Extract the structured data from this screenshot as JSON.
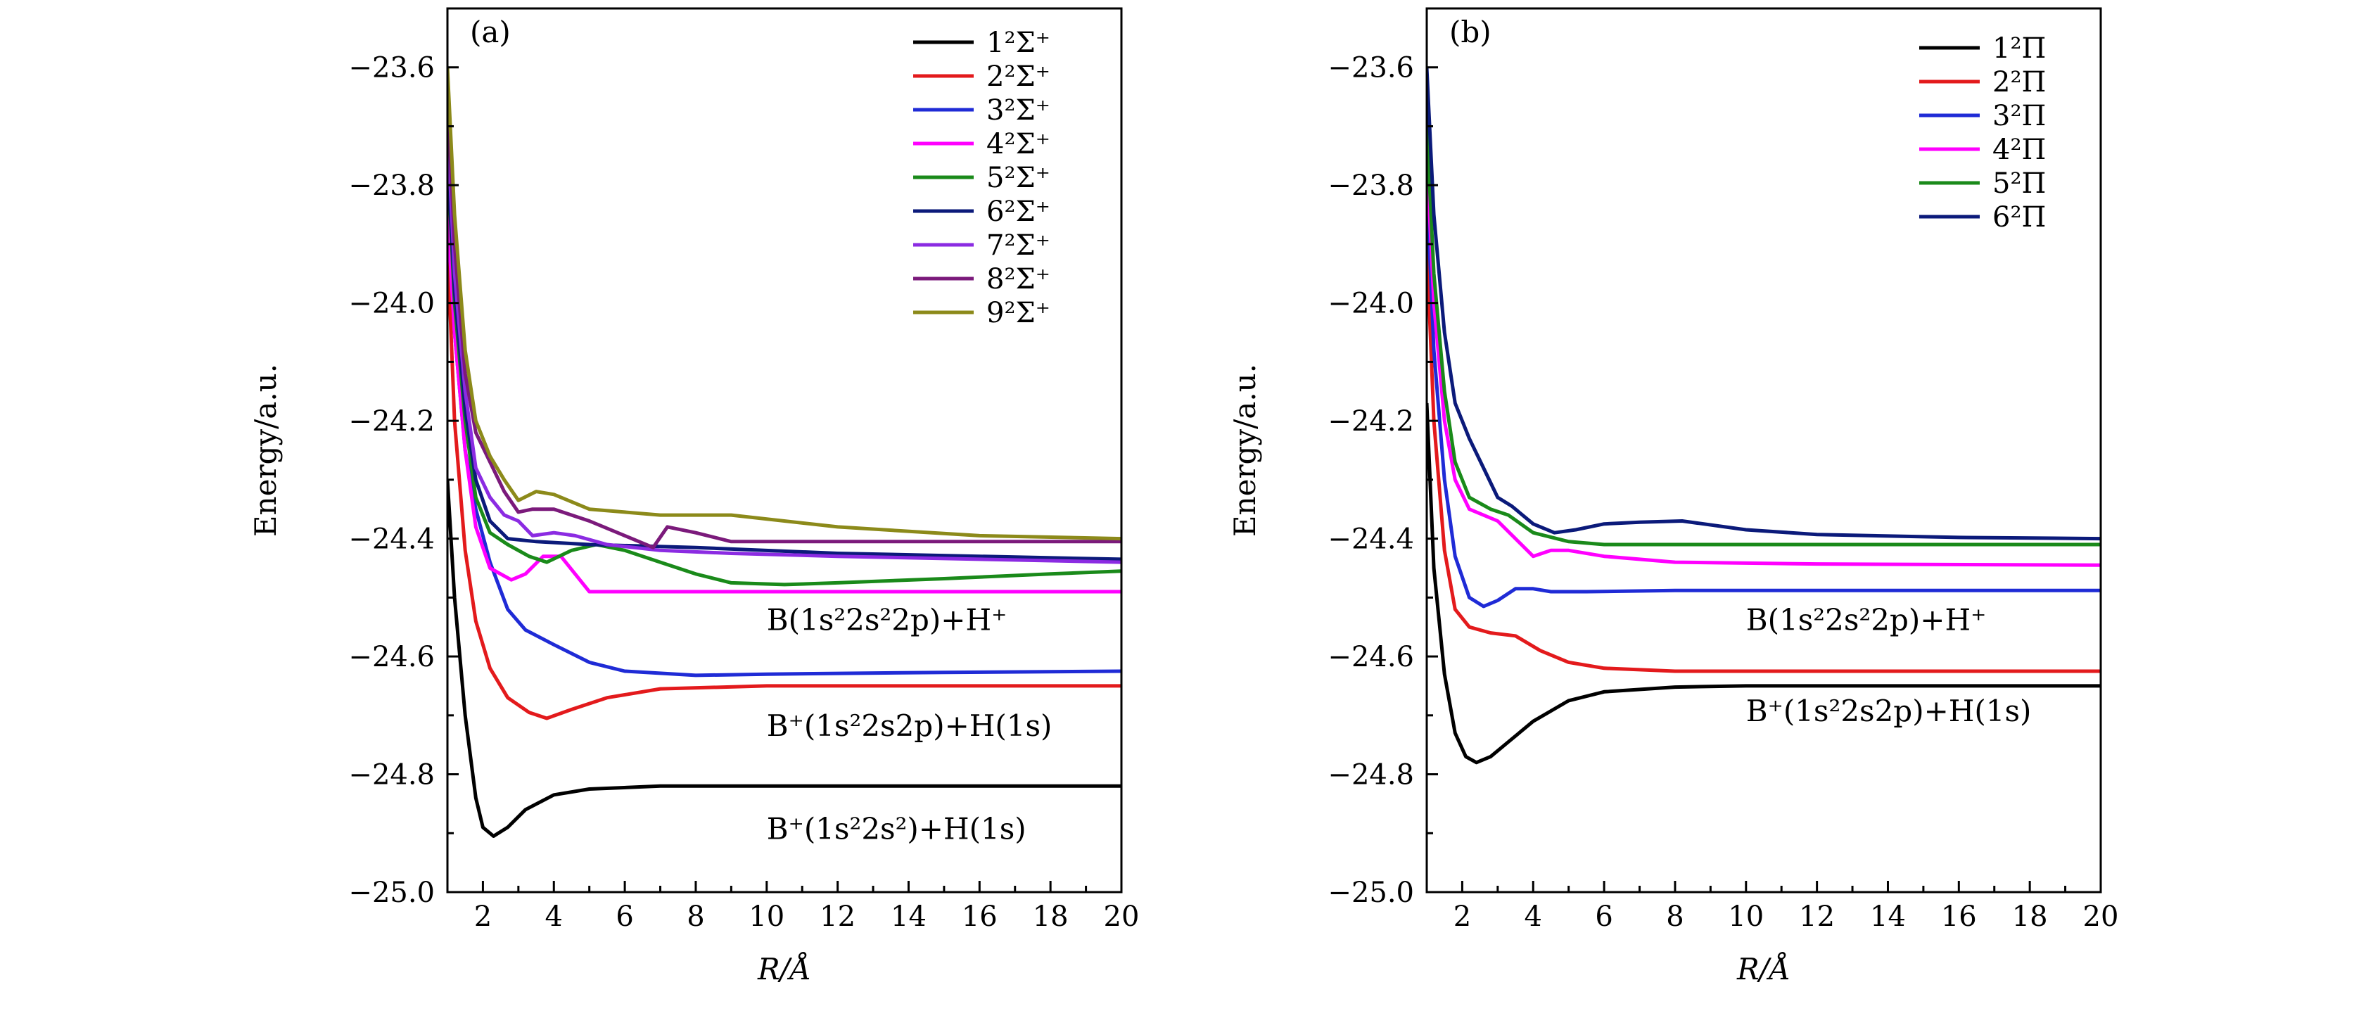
{
  "chart_data": [
    {
      "type": "line",
      "panel_label": "(a)",
      "xlabel": "R/Å",
      "ylabel": "Energy/a.u.",
      "xlim": [
        1,
        20
      ],
      "ylim": [
        -25.0,
        -23.5
      ],
      "xticks": [
        2,
        4,
        6,
        8,
        10,
        12,
        14,
        16,
        18,
        20
      ],
      "yticks": [
        -25.0,
        -24.8,
        -24.6,
        -24.4,
        -24.2,
        -24.0,
        -23.8,
        -23.6
      ],
      "xtick_labels": [
        "2",
        "4",
        "6",
        "8",
        "10",
        "12",
        "14",
        "16",
        "18",
        "20"
      ],
      "ytick_labels": [
        "−25.0",
        "−24.8",
        "−24.6",
        "−24.4",
        "−24.2",
        "−24.0",
        "−23.8",
        "−23.6"
      ],
      "legend_position": "top-right",
      "series": [
        {
          "name": "1²Σ⁺",
          "color": "#000000",
          "points": [
            [
              1.0,
              -24.3
            ],
            [
              1.2,
              -24.5
            ],
            [
              1.5,
              -24.7
            ],
            [
              1.8,
              -24.84
            ],
            [
              2.0,
              -24.89
            ],
            [
              2.3,
              -24.905
            ],
            [
              2.7,
              -24.89
            ],
            [
              3.2,
              -24.86
            ],
            [
              4.0,
              -24.835
            ],
            [
              5.0,
              -24.825
            ],
            [
              7.0,
              -24.82
            ],
            [
              10,
              -24.82
            ],
            [
              15,
              -24.82
            ],
            [
              20,
              -24.82
            ]
          ]
        },
        {
          "name": "2²Σ⁺",
          "color": "#e31a1c",
          "points": [
            [
              1.0,
              -23.9
            ],
            [
              1.2,
              -24.2
            ],
            [
              1.5,
              -24.42
            ],
            [
              1.8,
              -24.54
            ],
            [
              2.2,
              -24.62
            ],
            [
              2.7,
              -24.67
            ],
            [
              3.3,
              -24.695
            ],
            [
              3.8,
              -24.705
            ],
            [
              4.5,
              -24.69
            ],
            [
              5.5,
              -24.67
            ],
            [
              7.0,
              -24.655
            ],
            [
              10,
              -24.65
            ],
            [
              20,
              -24.65
            ]
          ]
        },
        {
          "name": "3²Σ⁺",
          "color": "#1f2bd6",
          "points": [
            [
              1.0,
              -23.8
            ],
            [
              1.2,
              -24.05
            ],
            [
              1.5,
              -24.25
            ],
            [
              1.8,
              -24.35
            ],
            [
              2.2,
              -24.44
            ],
            [
              2.7,
              -24.52
            ],
            [
              3.2,
              -24.555
            ],
            [
              4.0,
              -24.58
            ],
            [
              5.0,
              -24.61
            ],
            [
              6.0,
              -24.625
            ],
            [
              8.0,
              -24.632
            ],
            [
              10,
              -24.63
            ],
            [
              15,
              -24.627
            ],
            [
              20,
              -24.625
            ]
          ]
        },
        {
          "name": "4²Σ⁺",
          "color": "#ff00ff",
          "points": [
            [
              1.0,
              -23.85
            ],
            [
              1.2,
              -24.05
            ],
            [
              1.5,
              -24.25
            ],
            [
              1.8,
              -24.38
            ],
            [
              2.2,
              -24.45
            ],
            [
              2.8,
              -24.47
            ],
            [
              3.2,
              -24.46
            ],
            [
              3.7,
              -24.43
            ],
            [
              4.2,
              -24.43
            ],
            [
              4.6,
              -24.46
            ],
            [
              5.0,
              -24.49
            ],
            [
              6.0,
              -24.49
            ],
            [
              10,
              -24.49
            ],
            [
              20,
              -24.49
            ]
          ]
        },
        {
          "name": "5²Σ⁺",
          "color": "#1a8a1a",
          "points": [
            [
              1.0,
              -23.75
            ],
            [
              1.2,
              -24.0
            ],
            [
              1.5,
              -24.2
            ],
            [
              1.8,
              -24.33
            ],
            [
              2.2,
              -24.39
            ],
            [
              2.7,
              -24.41
            ],
            [
              3.3,
              -24.43
            ],
            [
              3.8,
              -24.44
            ],
            [
              4.5,
              -24.42
            ],
            [
              5.2,
              -24.41
            ],
            [
              6.0,
              -24.42
            ],
            [
              7.0,
              -24.44
            ],
            [
              8.0,
              -24.46
            ],
            [
              9.0,
              -24.475
            ],
            [
              10.5,
              -24.478
            ],
            [
              12,
              -24.475
            ],
            [
              15,
              -24.468
            ],
            [
              18,
              -24.46
            ],
            [
              20,
              -24.455
            ]
          ]
        },
        {
          "name": "6²Σ⁺",
          "color": "#0b1a7a",
          "points": [
            [
              1.0,
              -23.75
            ],
            [
              1.2,
              -23.98
            ],
            [
              1.5,
              -24.18
            ],
            [
              1.8,
              -24.3
            ],
            [
              2.2,
              -24.37
            ],
            [
              2.7,
              -24.4
            ],
            [
              3.5,
              -24.405
            ],
            [
              5.0,
              -24.41
            ],
            [
              8.0,
              -24.415
            ],
            [
              12,
              -24.425
            ],
            [
              16,
              -24.43
            ],
            [
              20,
              -24.435
            ]
          ]
        },
        {
          "name": "7²Σ⁺",
          "color": "#8b2be2",
          "points": [
            [
              1.0,
              -23.7
            ],
            [
              1.2,
              -23.95
            ],
            [
              1.5,
              -24.15
            ],
            [
              1.8,
              -24.28
            ],
            [
              2.2,
              -24.33
            ],
            [
              2.6,
              -24.36
            ],
            [
              3.0,
              -24.37
            ],
            [
              3.4,
              -24.395
            ],
            [
              4.0,
              -24.39
            ],
            [
              4.6,
              -24.395
            ],
            [
              5.5,
              -24.41
            ],
            [
              7.0,
              -24.42
            ],
            [
              9.0,
              -24.425
            ],
            [
              12,
              -24.43
            ],
            [
              16,
              -24.435
            ],
            [
              20,
              -24.44
            ]
          ]
        },
        {
          "name": "8²Σ⁺",
          "color": "#7b1a7b",
          "points": [
            [
              1.0,
              -23.65
            ],
            [
              1.2,
              -23.9
            ],
            [
              1.5,
              -24.12
            ],
            [
              1.8,
              -24.22
            ],
            [
              2.2,
              -24.27
            ],
            [
              2.6,
              -24.32
            ],
            [
              3.0,
              -24.355
            ],
            [
              3.4,
              -24.35
            ],
            [
              4.0,
              -24.35
            ],
            [
              5.0,
              -24.37
            ],
            [
              6.0,
              -24.395
            ],
            [
              6.8,
              -24.415
            ],
            [
              7.2,
              -24.38
            ],
            [
              8.0,
              -24.39
            ],
            [
              9.0,
              -24.405
            ],
            [
              12,
              -24.405
            ],
            [
              16,
              -24.405
            ],
            [
              20,
              -24.405
            ]
          ]
        },
        {
          "name": "9²Σ⁺",
          "color": "#8c8a1a",
          "points": [
            [
              1.0,
              -23.6
            ],
            [
              1.2,
              -23.85
            ],
            [
              1.5,
              -24.08
            ],
            [
              1.8,
              -24.2
            ],
            [
              2.2,
              -24.26
            ],
            [
              2.6,
              -24.3
            ],
            [
              3.0,
              -24.335
            ],
            [
              3.5,
              -24.32
            ],
            [
              4.0,
              -24.325
            ],
            [
              5.0,
              -24.35
            ],
            [
              6.0,
              -24.355
            ],
            [
              7.0,
              -24.36
            ],
            [
              8.0,
              -24.36
            ],
            [
              9.0,
              -24.36
            ],
            [
              12,
              -24.38
            ],
            [
              16,
              -24.395
            ],
            [
              20,
              -24.4
            ]
          ]
        }
      ],
      "annotations": [
        {
          "text": "B(1s²2s²2p)+H⁺",
          "x": 10.0,
          "y": -24.555
        },
        {
          "text": "B⁺(1s²2s2p)+H(1s)",
          "x": 10.0,
          "y": -24.735
        },
        {
          "text": "B⁺(1s²2s²)+H(1s)",
          "x": 10.0,
          "y": -24.91
        }
      ]
    },
    {
      "type": "line",
      "panel_label": "(b)",
      "xlabel": "R/Å",
      "ylabel": "Energy/a.u.",
      "xlim": [
        1,
        20
      ],
      "ylim": [
        -25.0,
        -23.5
      ],
      "xticks": [
        2,
        4,
        6,
        8,
        10,
        12,
        14,
        16,
        18,
        20
      ],
      "yticks": [
        -25.0,
        -24.8,
        -24.6,
        -24.4,
        -24.2,
        -24.0,
        -23.8,
        -23.6
      ],
      "xtick_labels": [
        "2",
        "4",
        "6",
        "8",
        "10",
        "12",
        "14",
        "16",
        "18",
        "20"
      ],
      "ytick_labels": [
        "−25.0",
        "−24.8",
        "−24.6",
        "−24.4",
        "−24.2",
        "−24.0",
        "−23.8",
        "−23.6"
      ],
      "legend_position": "top-right",
      "series": [
        {
          "name": "1²Π",
          "color": "#000000",
          "points": [
            [
              1.0,
              -24.17
            ],
            [
              1.2,
              -24.45
            ],
            [
              1.5,
              -24.63
            ],
            [
              1.8,
              -24.73
            ],
            [
              2.1,
              -24.77
            ],
            [
              2.4,
              -24.78
            ],
            [
              2.8,
              -24.77
            ],
            [
              3.3,
              -24.745
            ],
            [
              4.0,
              -24.71
            ],
            [
              5.0,
              -24.675
            ],
            [
              6.0,
              -24.66
            ],
            [
              8.0,
              -24.652
            ],
            [
              10,
              -24.65
            ],
            [
              20,
              -24.65
            ]
          ]
        },
        {
          "name": "2²Π",
          "color": "#e31a1c",
          "points": [
            [
              1.0,
              -23.9
            ],
            [
              1.2,
              -24.2
            ],
            [
              1.5,
              -24.42
            ],
            [
              1.8,
              -24.52
            ],
            [
              2.2,
              -24.55
            ],
            [
              2.8,
              -24.56
            ],
            [
              3.5,
              -24.565
            ],
            [
              4.2,
              -24.59
            ],
            [
              5.0,
              -24.61
            ],
            [
              6.0,
              -24.62
            ],
            [
              8.0,
              -24.625
            ],
            [
              20,
              -24.625
            ]
          ]
        },
        {
          "name": "3²Π",
          "color": "#1f2bd6",
          "points": [
            [
              1.0,
              -23.8
            ],
            [
              1.2,
              -24.08
            ],
            [
              1.5,
              -24.3
            ],
            [
              1.8,
              -24.43
            ],
            [
              2.2,
              -24.5
            ],
            [
              2.6,
              -24.515
            ],
            [
              3.0,
              -24.505
            ],
            [
              3.5,
              -24.485
            ],
            [
              4.0,
              -24.485
            ],
            [
              4.5,
              -24.49
            ],
            [
              5.5,
              -24.49
            ],
            [
              8.0,
              -24.488
            ],
            [
              20,
              -24.488
            ]
          ]
        },
        {
          "name": "4²Π",
          "color": "#ff00ff",
          "points": [
            [
              1.0,
              -23.75
            ],
            [
              1.2,
              -24.0
            ],
            [
              1.5,
              -24.2
            ],
            [
              1.8,
              -24.3
            ],
            [
              2.2,
              -24.35
            ],
            [
              3.0,
              -24.37
            ],
            [
              3.5,
              -24.4
            ],
            [
              4.0,
              -24.43
            ],
            [
              4.5,
              -24.42
            ],
            [
              5.0,
              -24.42
            ],
            [
              6.0,
              -24.43
            ],
            [
              8.0,
              -24.44
            ],
            [
              12,
              -24.443
            ],
            [
              20,
              -24.445
            ]
          ]
        },
        {
          "name": "5²Π",
          "color": "#1a8a1a",
          "points": [
            [
              1.0,
              -23.7
            ],
            [
              1.2,
              -23.95
            ],
            [
              1.5,
              -24.15
            ],
            [
              1.8,
              -24.27
            ],
            [
              2.2,
              -24.33
            ],
            [
              2.8,
              -24.35
            ],
            [
              3.3,
              -24.36
            ],
            [
              4.0,
              -24.39
            ],
            [
              5.0,
              -24.405
            ],
            [
              6.0,
              -24.41
            ],
            [
              8.0,
              -24.41
            ],
            [
              12,
              -24.41
            ],
            [
              20,
              -24.41
            ]
          ]
        },
        {
          "name": "6²Π",
          "color": "#0b1a7a",
          "points": [
            [
              1.0,
              -23.6
            ],
            [
              1.2,
              -23.85
            ],
            [
              1.5,
              -24.05
            ],
            [
              1.8,
              -24.17
            ],
            [
              2.2,
              -24.23
            ],
            [
              2.6,
              -24.28
            ],
            [
              3.0,
              -24.33
            ],
            [
              3.4,
              -24.345
            ],
            [
              4.0,
              -24.375
            ],
            [
              4.6,
              -24.39
            ],
            [
              5.2,
              -24.385
            ],
            [
              6.0,
              -24.375
            ],
            [
              7.0,
              -24.372
            ],
            [
              8.2,
              -24.37
            ],
            [
              10,
              -24.385
            ],
            [
              12,
              -24.393
            ],
            [
              16,
              -24.398
            ],
            [
              20,
              -24.4
            ]
          ]
        }
      ],
      "annotations": [
        {
          "text": "B(1s²2s²2p)+H⁺",
          "x": 10.0,
          "y": -24.555
        },
        {
          "text": "B⁺(1s²2s2p)+H(1s)",
          "x": 10.0,
          "y": -24.71
        }
      ]
    }
  ]
}
